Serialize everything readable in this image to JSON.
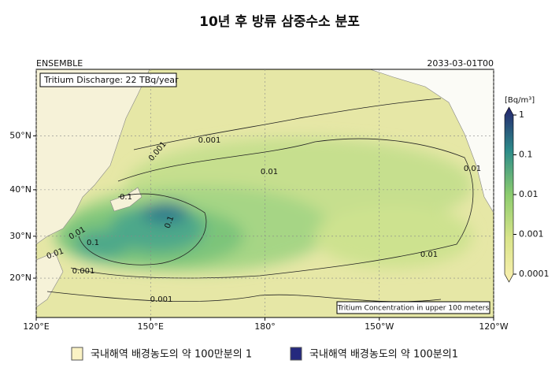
{
  "title": "10년 후 방류 삼중수소 분포",
  "map": {
    "left_label": "ENSEMBLE",
    "right_label": "2033-03-01T00",
    "discharge_note": "Tritium Discharge: 22 TBq/year",
    "inset_note": "Tritium Concentration in upper 100 meters",
    "xlim": [
      120,
      240
    ],
    "ylim": [
      10,
      60
    ],
    "lat_ticks": [
      {
        "value": 20,
        "label": "20°N"
      },
      {
        "value": 30,
        "label": "30°N"
      },
      {
        "value": 40,
        "label": "40°N"
      },
      {
        "value": 50,
        "label": "50°N"
      }
    ],
    "lon_ticks": [
      {
        "value": 120,
        "label": "120°E"
      },
      {
        "value": 150,
        "label": "150°E"
      },
      {
        "value": 180,
        "label": "180°"
      },
      {
        "value": 210,
        "label": "150°W"
      },
      {
        "value": 240,
        "label": "120°W"
      }
    ],
    "contour_labels": [
      "0.001",
      "0.001",
      "0.01",
      "0.01",
      "0.1",
      "0.1",
      "0.01",
      "0.01",
      "0.001",
      "0.01",
      "0.001",
      "0.1"
    ]
  },
  "colorbar": {
    "unit": "[Bq/m³]",
    "log_scale": true,
    "lim": [
      0.0001,
      1
    ],
    "ticks": [
      1,
      0.1,
      0.01,
      0.001,
      0.0001
    ]
  },
  "legend": [
    "국내해역 배경농도의 약 100만분의 1",
    "국내해역 배경농도의 약 100분의1"
  ]
}
